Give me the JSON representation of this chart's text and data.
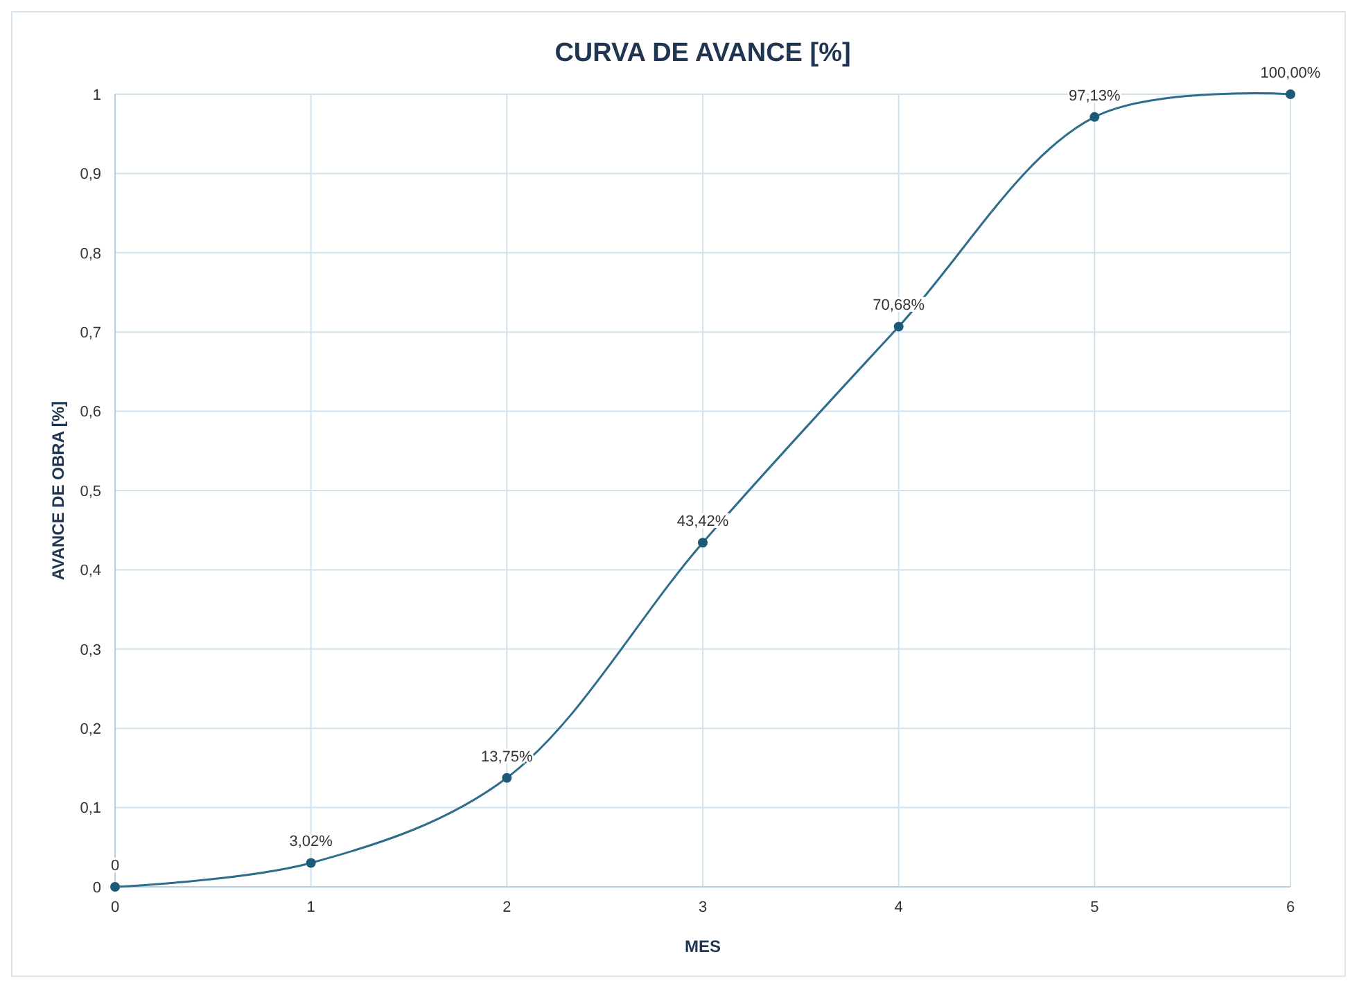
{
  "chart_data": {
    "type": "line",
    "title": "CURVA DE AVANCE [%]",
    "xlabel": "MES",
    "ylabel": "AVANCE DE OBRA [%]",
    "x": [
      0,
      1,
      2,
      3,
      4,
      5,
      6
    ],
    "series": [
      {
        "color": "#2e6d8c",
        "values": [
          0,
          0.0302,
          0.1375,
          0.4342,
          0.7068,
          0.9713,
          1
        ],
        "value_labels": [
          "0",
          "3,02%",
          "13,75%",
          "43,42%",
          "70,68%",
          "97,13%",
          "100,00%"
        ]
      }
    ],
    "xlim": [
      0,
      6
    ],
    "xticks": [
      0,
      1,
      2,
      3,
      4,
      5,
      6
    ],
    "ylim": [
      0,
      1
    ],
    "yticks": [
      0,
      {
        "value": 0.1,
        "label": "0,1"
      },
      {
        "value": 0.2,
        "label": "0,2"
      },
      {
        "value": 0.3,
        "label": "0,3"
      },
      {
        "value": 0.4,
        "label": "0,4"
      },
      {
        "value": 0.5,
        "label": "0,5"
      },
      {
        "value": 0.6,
        "label": "0,6"
      },
      {
        "value": 0.7,
        "label": "0,7"
      },
      {
        "value": 0.8,
        "label": "0,8"
      },
      {
        "value": 0.9,
        "label": "0,9"
      },
      1
    ],
    "grid": true,
    "marker": "circle",
    "line_style": "solid"
  }
}
